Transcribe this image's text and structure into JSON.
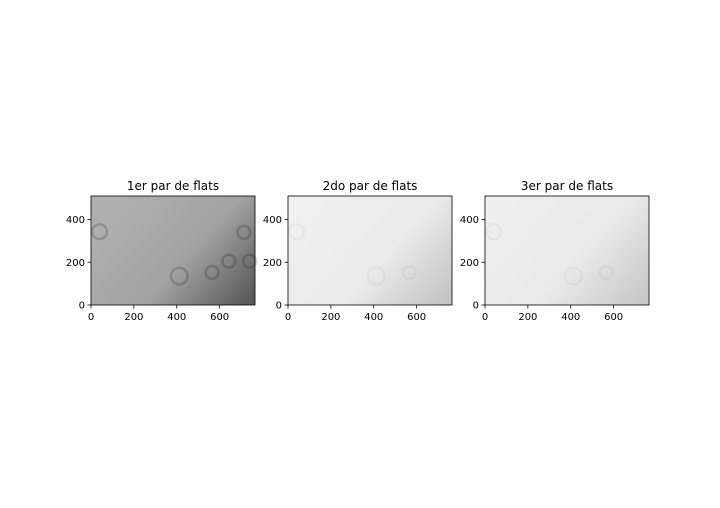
{
  "chart_data": [
    {
      "type": "heatmap",
      "title": "1er par de flats",
      "xlim": [
        0,
        765
      ],
      "ylim": [
        0,
        510
      ],
      "x_ticks": [
        "0",
        "200",
        "400",
        "600"
      ],
      "y_ticks": [
        "0",
        "200",
        "400"
      ],
      "colormap": "gray",
      "gradient": {
        "light": "#b0b0b0",
        "mid": "#a2a2a2",
        "dark": "#5a5a5a"
      },
      "dust_rings": [
        {
          "x": 40,
          "y": 343,
          "r": 8
        },
        {
          "x": 412,
          "y": 135,
          "r": 9
        },
        {
          "x": 565,
          "y": 152,
          "r": 7
        },
        {
          "x": 643,
          "y": 205,
          "r": 7
        },
        {
          "x": 713,
          "y": 340,
          "r": 7
        },
        {
          "x": 740,
          "y": 205,
          "r": 7
        }
      ]
    },
    {
      "type": "heatmap",
      "title": "2do par de flats",
      "xlim": [
        0,
        765
      ],
      "ylim": [
        0,
        510
      ],
      "x_ticks": [
        "0",
        "200",
        "400",
        "600"
      ],
      "y_ticks": [
        "0",
        "200",
        "400"
      ],
      "colormap": "gray",
      "gradient": {
        "light": "#f0f0f0",
        "mid": "#ebebeb",
        "dark": "#c4c4c4"
      },
      "dust_rings": [
        {
          "x": 40,
          "y": 343,
          "r": 8
        },
        {
          "x": 412,
          "y": 135,
          "r": 9
        },
        {
          "x": 565,
          "y": 152,
          "r": 7
        }
      ]
    },
    {
      "type": "heatmap",
      "title": "3er par de flats",
      "xlim": [
        0,
        765
      ],
      "ylim": [
        0,
        510
      ],
      "x_ticks": [
        "0",
        "200",
        "400",
        "600"
      ],
      "y_ticks": [
        "0",
        "200",
        "400"
      ],
      "colormap": "gray",
      "gradient": {
        "light": "#efefef",
        "mid": "#e9e9e9",
        "dark": "#c8c8c8"
      },
      "dust_rings": [
        {
          "x": 40,
          "y": 343,
          "r": 8
        },
        {
          "x": 412,
          "y": 135,
          "r": 9
        },
        {
          "x": 565,
          "y": 152,
          "r": 7
        }
      ]
    }
  ]
}
